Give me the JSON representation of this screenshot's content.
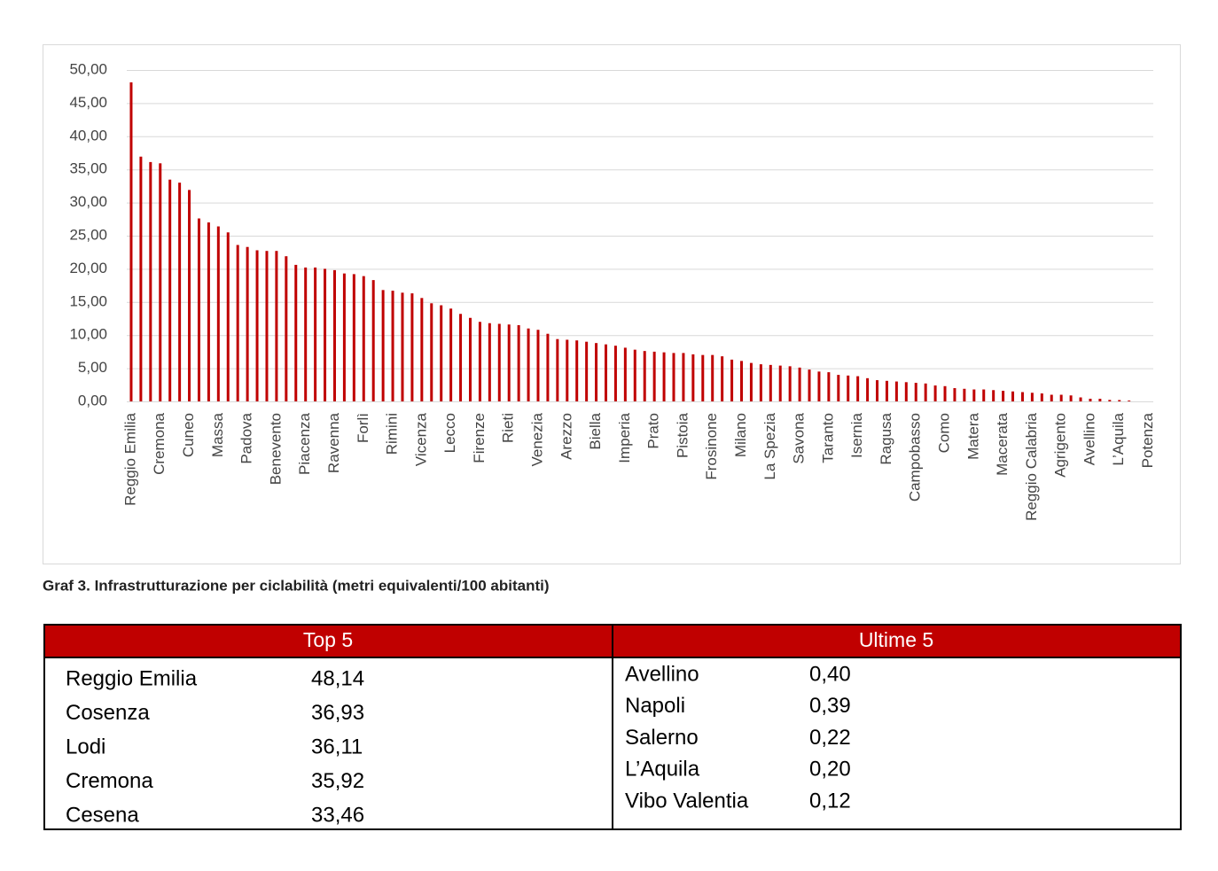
{
  "chart_data": {
    "type": "bar",
    "color": "#c00000",
    "grid": true,
    "categories": [
      "Reggio Emilia",
      null,
      null,
      "Cremona",
      null,
      null,
      "Cuneo",
      null,
      null,
      "Massa",
      null,
      null,
      "Padova",
      null,
      null,
      "Benevento",
      null,
      null,
      "Piacenza",
      null,
      null,
      "Ravenna",
      null,
      null,
      "Forlì",
      null,
      null,
      "Rimini",
      null,
      null,
      "Vicenza",
      null,
      null,
      "Lecco",
      null,
      null,
      "Firenze",
      null,
      null,
      "Rieti",
      null,
      null,
      "Venezia",
      null,
      null,
      "Arezzo",
      null,
      null,
      "Biella",
      null,
      null,
      "Imperia",
      null,
      null,
      "Prato",
      null,
      null,
      "Pistoia",
      null,
      null,
      "Frosinone",
      null,
      null,
      "Milano",
      null,
      null,
      "La Spezia",
      null,
      null,
      "Savona",
      null,
      null,
      "Taranto",
      null,
      null,
      "Isernia",
      null,
      null,
      "Ragusa",
      null,
      null,
      "Campobasso",
      null,
      null,
      "Como",
      null,
      null,
      "Matera",
      null,
      null,
      "Macerata",
      null,
      null,
      "Reggio Calabria",
      null,
      null,
      "Agrigento",
      null,
      null,
      "Avellino",
      null,
      null,
      "L’Aquila",
      null,
      null,
      "Potenza"
    ],
    "values": [
      48.14,
      36.93,
      36.11,
      35.92,
      33.46,
      33.0,
      31.9,
      27.6,
      27.0,
      26.4,
      25.5,
      23.6,
      23.3,
      22.8,
      22.7,
      22.7,
      21.9,
      20.6,
      20.2,
      20.2,
      20.0,
      19.8,
      19.3,
      19.2,
      18.9,
      18.3,
      16.8,
      16.7,
      16.4,
      16.3,
      15.6,
      14.8,
      14.5,
      14.0,
      13.2,
      12.6,
      12.0,
      11.8,
      11.7,
      11.6,
      11.5,
      11.0,
      10.8,
      10.2,
      9.4,
      9.3,
      9.2,
      9.0,
      8.8,
      8.6,
      8.4,
      8.1,
      7.8,
      7.6,
      7.5,
      7.4,
      7.3,
      7.3,
      7.1,
      7.0,
      7.0,
      6.8,
      6.3,
      6.1,
      5.8,
      5.6,
      5.5,
      5.4,
      5.3,
      5.1,
      4.8,
      4.5,
      4.4,
      4.0,
      3.9,
      3.8,
      3.5,
      3.2,
      3.1,
      3.0,
      2.9,
      2.8,
      2.7,
      2.4,
      2.3,
      2.0,
      1.9,
      1.8,
      1.8,
      1.7,
      1.6,
      1.5,
      1.4,
      1.3,
      1.2,
      1.0,
      1.0,
      0.9,
      0.6,
      0.4,
      0.39,
      0.22,
      0.2,
      0.12,
      0,
      0
    ],
    "ylim": [
      0,
      50
    ],
    "yticks": [
      {
        "value": 0,
        "label": "0,00"
      },
      {
        "value": 5,
        "label": "5,00"
      },
      {
        "value": 10,
        "label": "10,00"
      },
      {
        "value": 15,
        "label": "15,00"
      },
      {
        "value": 20,
        "label": "20,00"
      },
      {
        "value": 25,
        "label": "25,00"
      },
      {
        "value": 30,
        "label": "30,00"
      },
      {
        "value": 35,
        "label": "35,00"
      },
      {
        "value": 40,
        "label": "40,00"
      },
      {
        "value": 45,
        "label": "45,00"
      },
      {
        "value": 50,
        "label": "50,00"
      }
    ]
  },
  "caption": "Graf 3. Infrastrutturazione per ciclabilità (metri equivalenti/100 abitanti)",
  "tables": [
    {
      "header": "Top 5",
      "rows": [
        [
          "Reggio Emilia",
          "48,14"
        ],
        [
          "Cosenza",
          "36,93"
        ],
        [
          "Lodi",
          "36,11"
        ],
        [
          "Cremona",
          "35,92"
        ],
        [
          "Cesena",
          "33,46"
        ]
      ]
    },
    {
      "header": "Ultime 5",
      "rows": [
        [
          "Avellino",
          "0,40"
        ],
        [
          "Napoli",
          "0,39"
        ],
        [
          "Salerno",
          "0,22"
        ],
        [
          "L’Aquila",
          "0,20"
        ],
        [
          "Vibo Valentia",
          "0,12"
        ]
      ]
    }
  ]
}
